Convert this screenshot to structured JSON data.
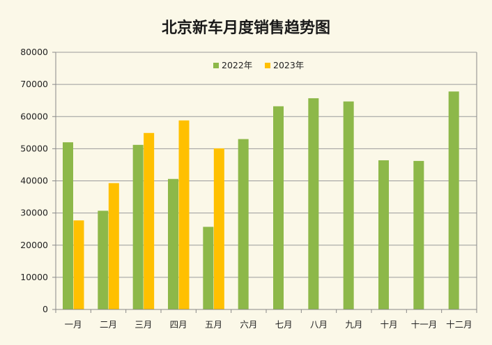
{
  "chart_data": {
    "type": "bar",
    "title": "北京新车月度销售趋势图",
    "categories": [
      "一月",
      "二月",
      "三月",
      "四月",
      "五月",
      "六月",
      "七月",
      "八月",
      "九月",
      "十月",
      "十一月",
      "十二月"
    ],
    "series": [
      {
        "name": "2022年",
        "color": "#8db849",
        "values": [
          52000,
          30700,
          51200,
          40600,
          25700,
          53000,
          63200,
          65700,
          64700,
          46400,
          46200,
          67800
        ]
      },
      {
        "name": "2023年",
        "color": "#ffc000",
        "values": [
          27700,
          39300,
          54900,
          58800,
          50100,
          null,
          null,
          null,
          null,
          null,
          null,
          null
        ]
      }
    ],
    "yticks": [
      "0",
      "10000",
      "20000",
      "30000",
      "40000",
      "50000",
      "60000",
      "70000",
      "80000"
    ],
    "ylim": [
      0,
      80000
    ],
    "grid": true,
    "legend_position": "top-center",
    "xlabel": "",
    "ylabel": ""
  }
}
